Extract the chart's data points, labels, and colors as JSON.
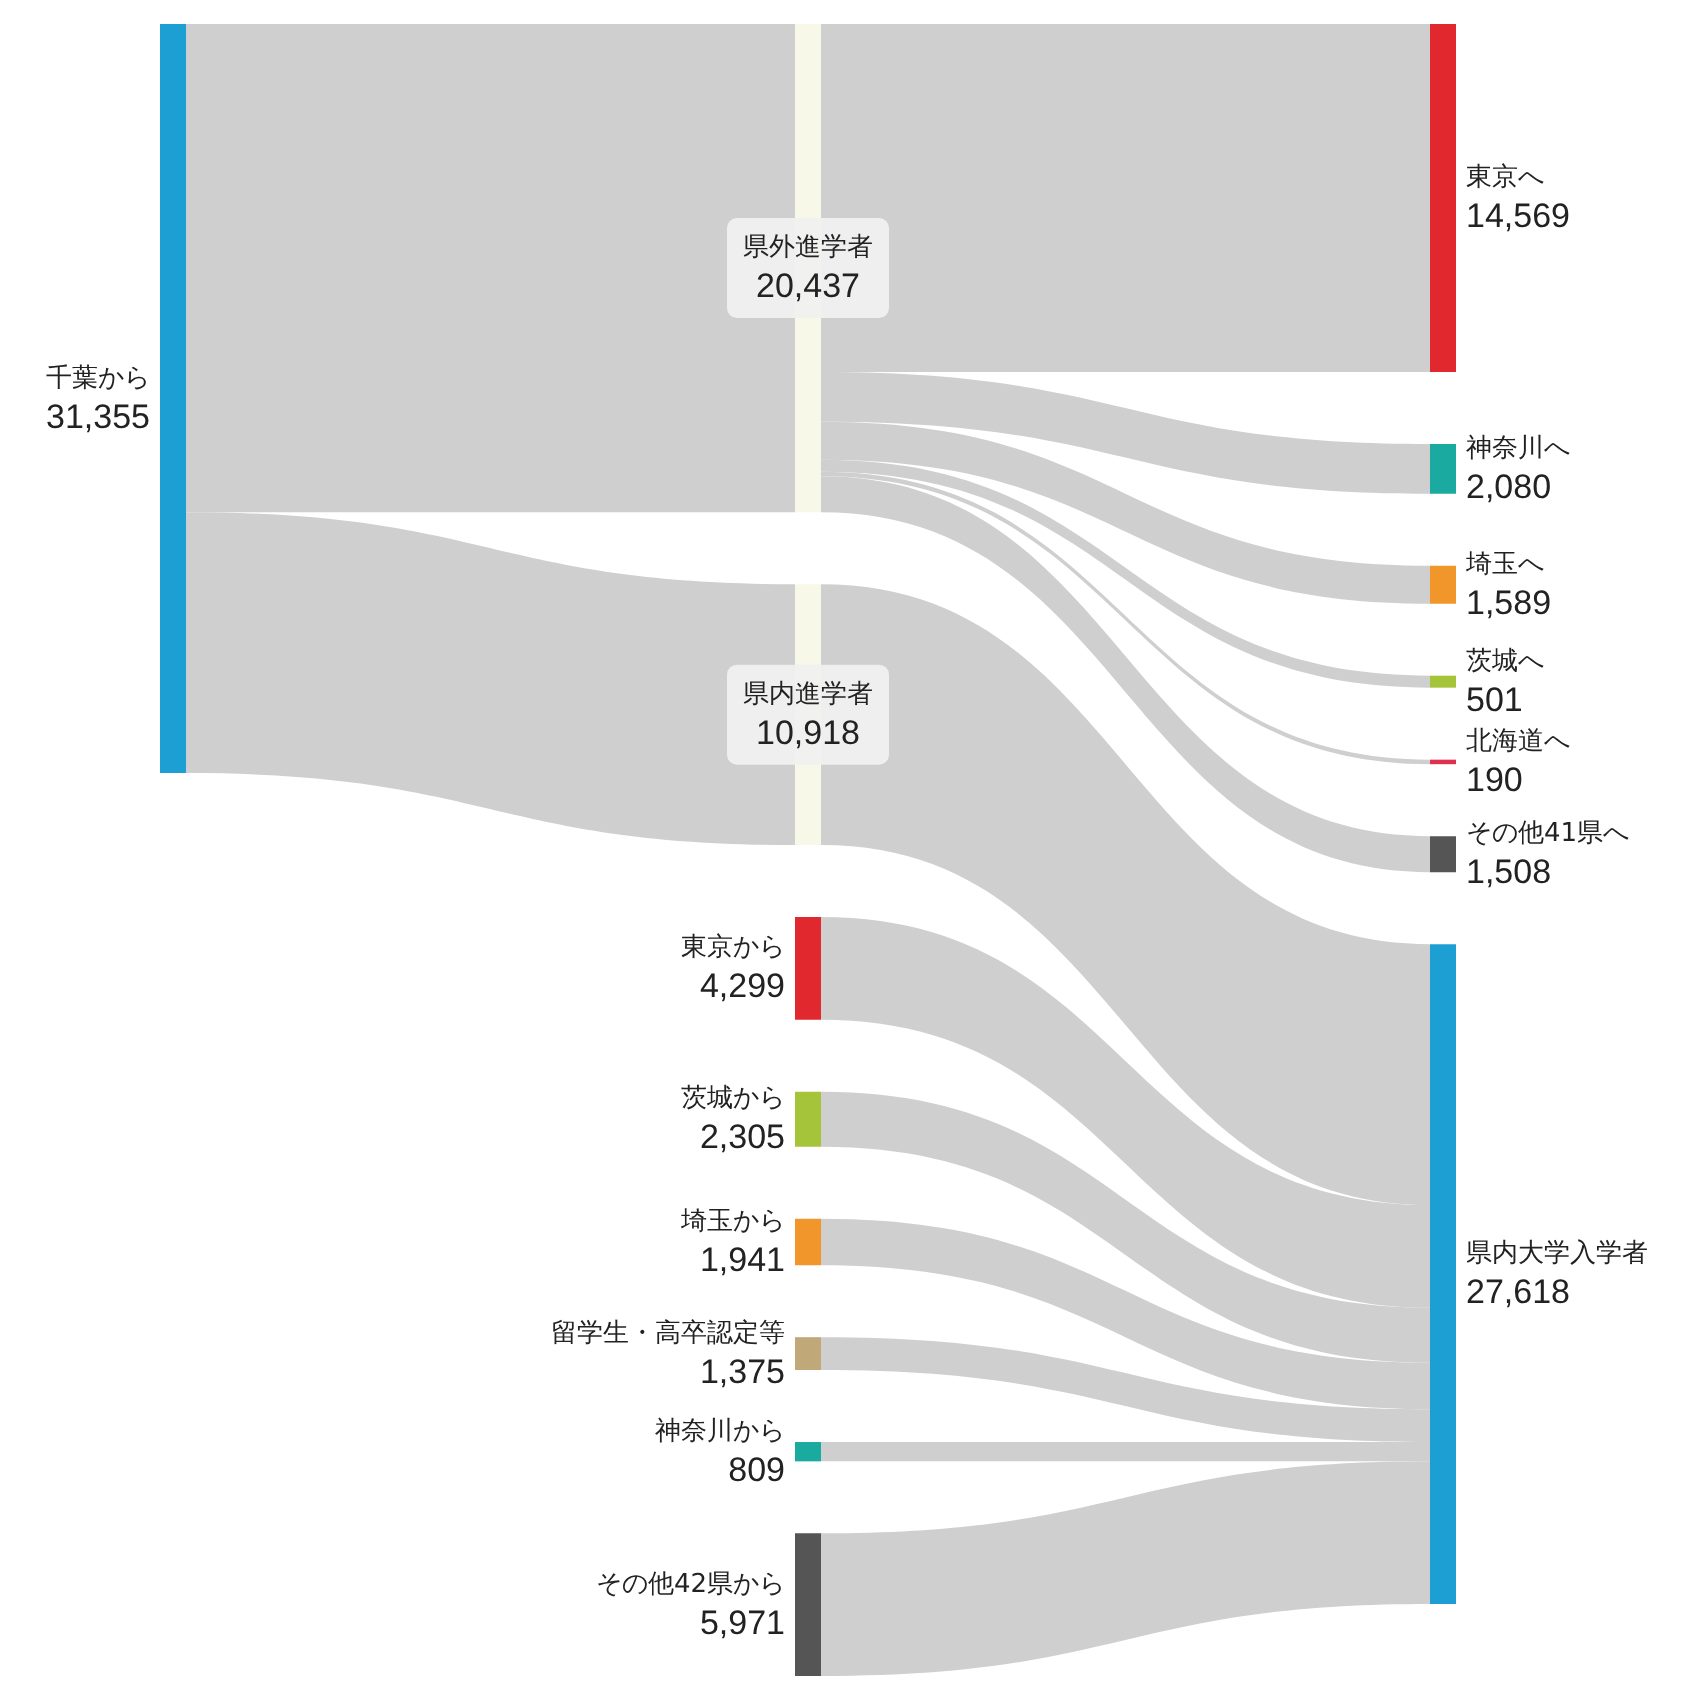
{
  "chart_data": {
    "type": "other",
    "categories": [
      "千葉から",
      "県外進学者",
      "県内進学者",
      "東京から",
      "茨城から",
      "埼玉から",
      "留学生・高卒認定等",
      "神奈川から",
      "その他42県から",
      "東京へ",
      "神奈川へ",
      "埼玉へ",
      "茨城へ",
      "北海道へ",
      "その他41県へ",
      "県内大学入学者"
    ],
    "values": [
      31355,
      20437,
      10918,
      4299,
      2305,
      1941,
      1375,
      809,
      5971,
      14569,
      2080,
      1589,
      501,
      190,
      1508,
      27618
    ],
    "value_labels": [
      "31,355",
      "20,437",
      "10,918",
      "4,299",
      "2,305",
      "1,941",
      "1,375",
      "809",
      "5,971",
      "14,569",
      "2,080",
      "1,589",
      "501",
      "190",
      "1,508",
      "27,618"
    ],
    "colors": [
      "#1e9fd4",
      "#f7f8e8",
      "#f7f8e8",
      "#e0282e",
      "#a5c43a",
      "#f0962a",
      "#c0a878",
      "#1aaaa0",
      "#555555",
      "#e0282e",
      "#1aaaa0",
      "#f0962a",
      "#a5c43a",
      "#e03050",
      "#555555",
      "#1e9fd4"
    ],
    "cells": [
      [
        null,
        true,
        true,
        null,
        null,
        null,
        null,
        null,
        null,
        null,
        null,
        null,
        null,
        null,
        null,
        null
      ],
      [
        null,
        null,
        null,
        null,
        null,
        null,
        null,
        null,
        null,
        true,
        true,
        true,
        true,
        true,
        true,
        null
      ],
      [
        null,
        null,
        null,
        null,
        null,
        null,
        null,
        null,
        null,
        null,
        null,
        null,
        null,
        null,
        null,
        true
      ],
      [
        null,
        null,
        null,
        null,
        null,
        null,
        null,
        null,
        null,
        null,
        null,
        null,
        null,
        null,
        null,
        true
      ],
      [
        null,
        null,
        null,
        null,
        null,
        null,
        null,
        null,
        null,
        null,
        null,
        null,
        null,
        null,
        null,
        true
      ],
      [
        null,
        null,
        null,
        null,
        null,
        null,
        null,
        null,
        null,
        null,
        null,
        null,
        null,
        null,
        null,
        true
      ],
      [
        null,
        null,
        null,
        null,
        null,
        null,
        null,
        null,
        null,
        null,
        null,
        null,
        null,
        null,
        null,
        true
      ],
      [
        null,
        null,
        null,
        null,
        null,
        null,
        null,
        null,
        null,
        null,
        null,
        null,
        null,
        null,
        null,
        true
      ],
      [
        null,
        null,
        null,
        null,
        null,
        null,
        null,
        null,
        null,
        null,
        null,
        null,
        null,
        null,
        null,
        true
      ],
      [
        null,
        null,
        null,
        null,
        null,
        null,
        null,
        null,
        null,
        null,
        null,
        null,
        null,
        null,
        null,
        null
      ],
      [
        null,
        null,
        null,
        null,
        null,
        null,
        null,
        null,
        null,
        null,
        null,
        null,
        null,
        null,
        null,
        null
      ],
      [
        null,
        null,
        null,
        null,
        null,
        null,
        null,
        null,
        null,
        null,
        null,
        null,
        null,
        null,
        null,
        null
      ],
      [
        null,
        null,
        null,
        null,
        null,
        null,
        null,
        null,
        null,
        null,
        null,
        null,
        null,
        null,
        null,
        null
      ],
      [
        null,
        null,
        null,
        null,
        null,
        null,
        null,
        null,
        null,
        null,
        null,
        null,
        null,
        null,
        null,
        null
      ],
      [
        null,
        null,
        null,
        null,
        null,
        null,
        null,
        null,
        null,
        null,
        null,
        null,
        null,
        null,
        null,
        null
      ],
      [
        null,
        null,
        null,
        null,
        null,
        null,
        null,
        null,
        null,
        null,
        null,
        null,
        null,
        null,
        null,
        null
      ]
    ]
  }
}
